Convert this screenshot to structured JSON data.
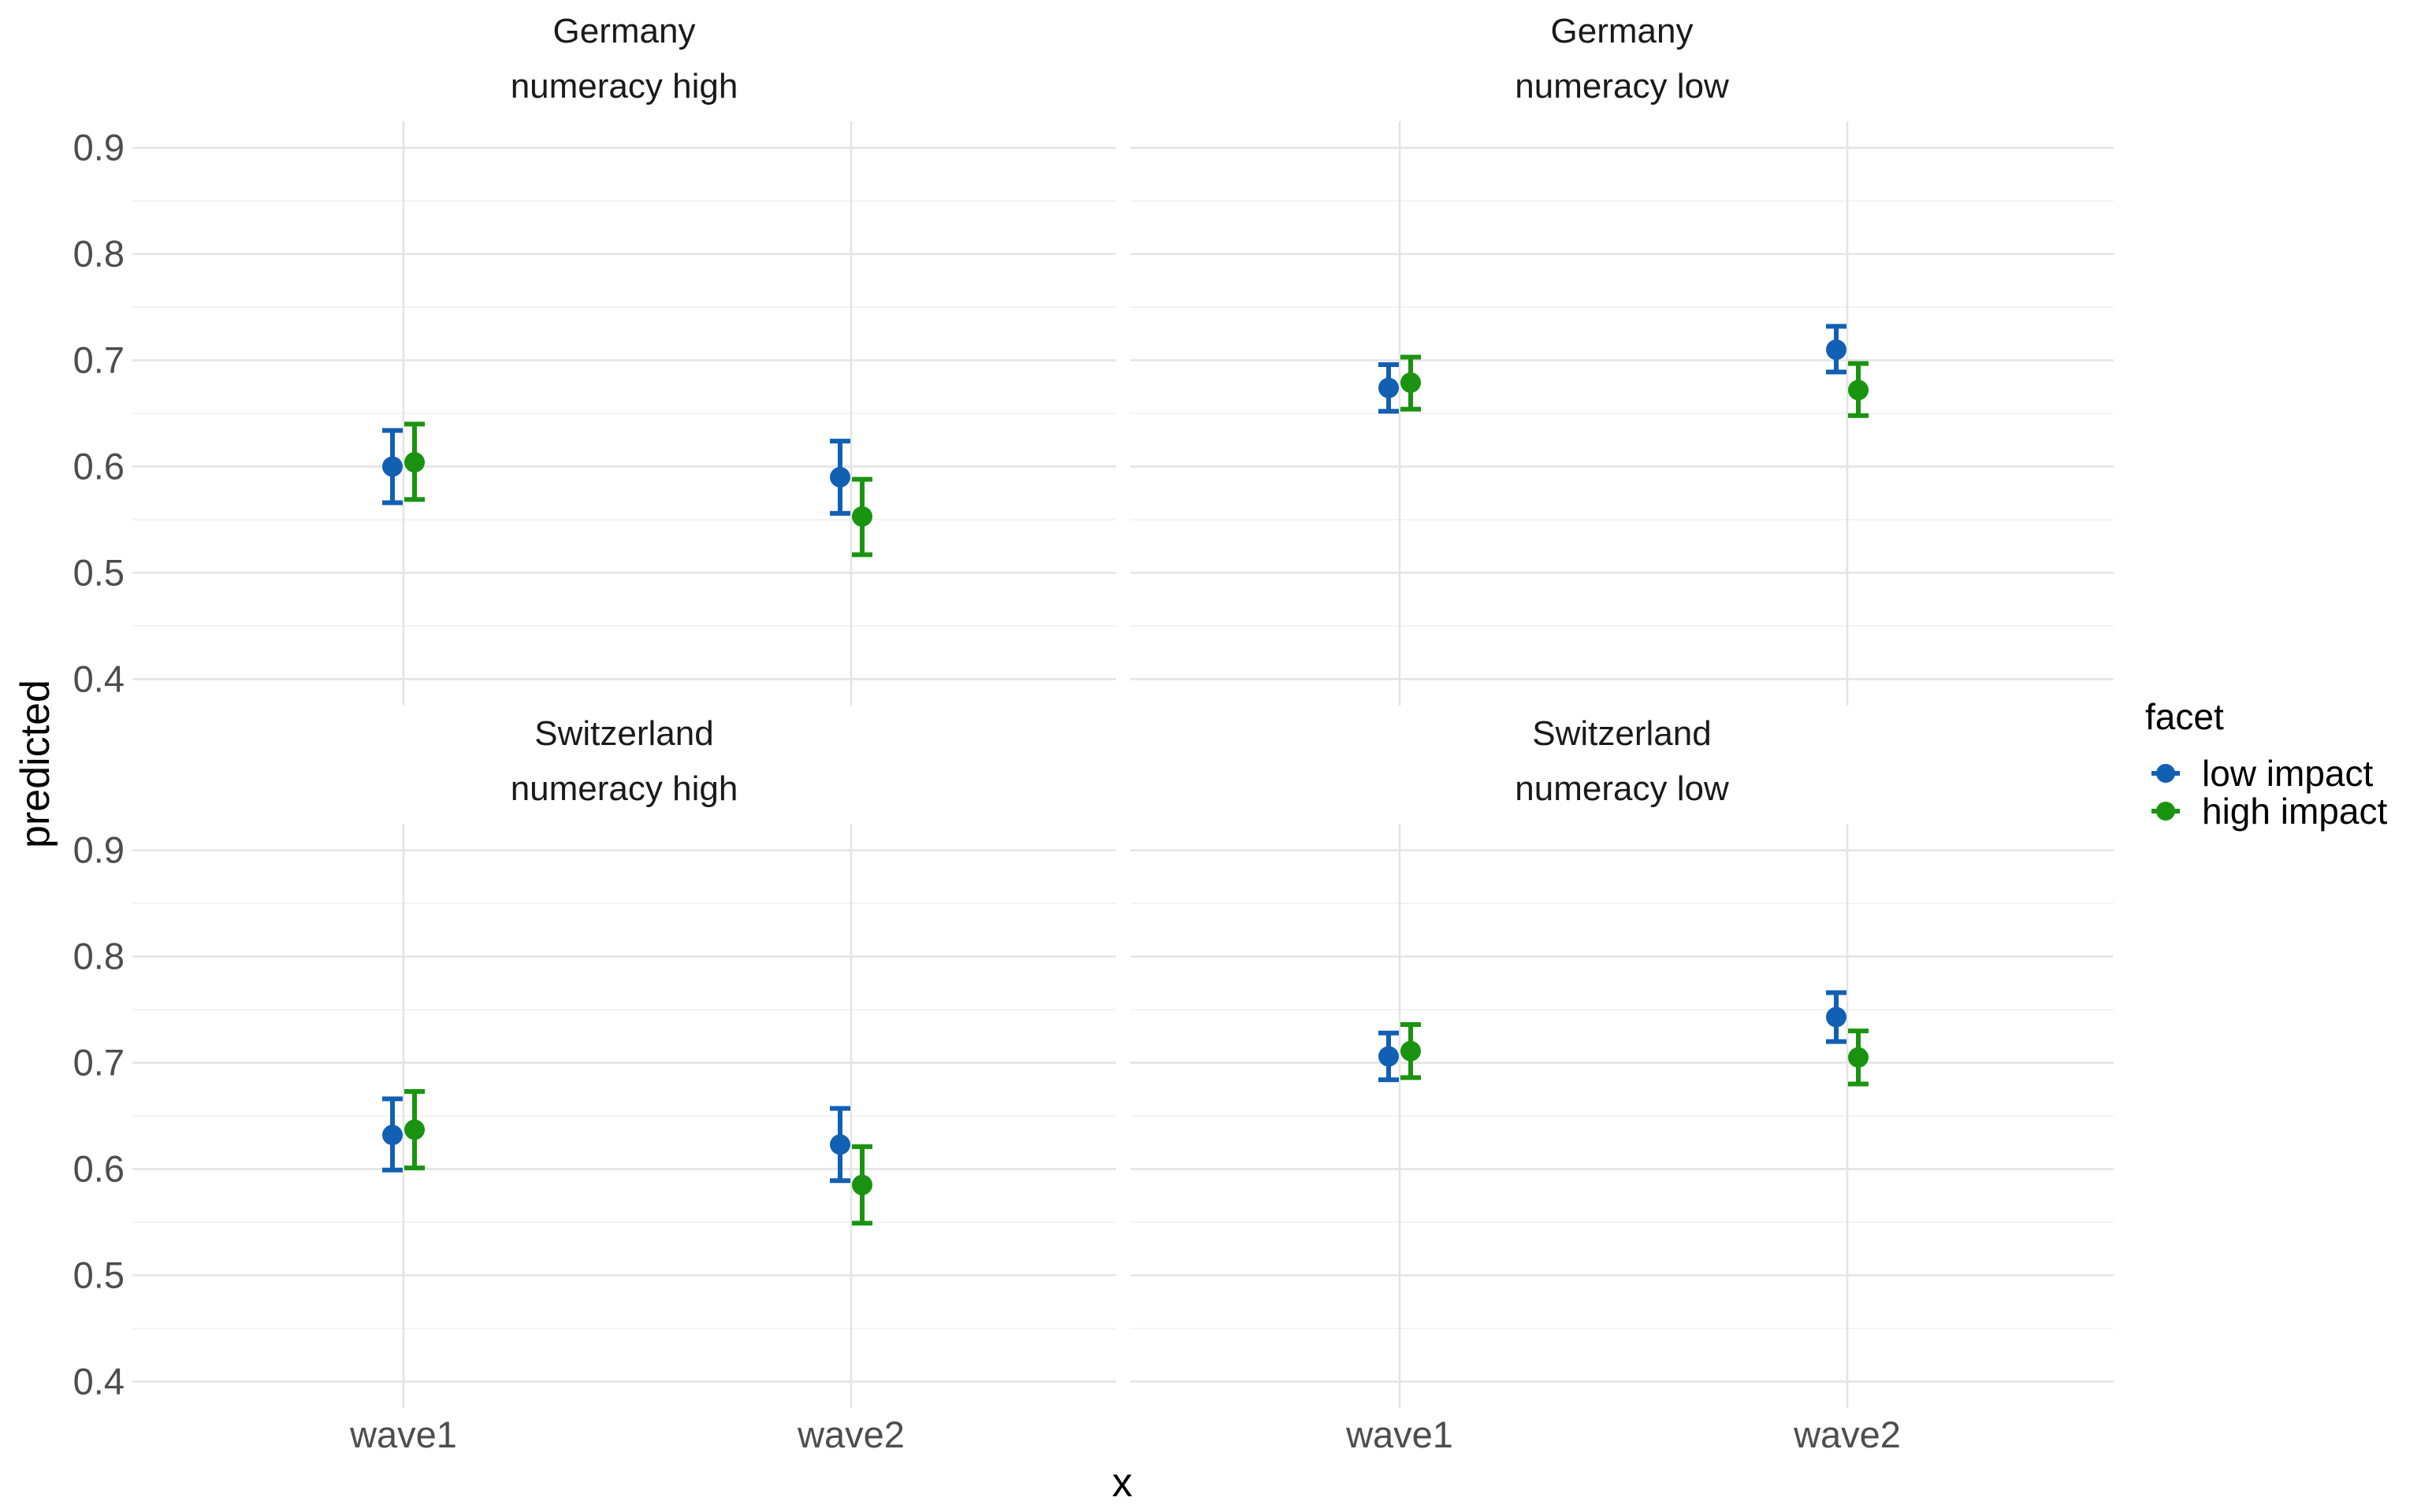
{
  "chart_data": {
    "type": "scatter",
    "subtype": "faceted point estimates with error bars",
    "xlabel": "x",
    "ylabel": "predicted",
    "x_categories": [
      "wave1",
      "wave2"
    ],
    "ylim": [
      0.375,
      0.925
    ],
    "y_ticks": [
      0.4,
      0.5,
      0.6,
      0.7,
      0.8,
      0.9
    ],
    "y_tick_labels": [
      "0.4",
      "0.5",
      "0.6",
      "0.7",
      "0.8",
      "0.9"
    ],
    "grid": true,
    "legend": {
      "title": "facet",
      "position": "right",
      "entries": [
        {
          "name": "low impact",
          "color": "#1260b4"
        },
        {
          "name": "high impact",
          "color": "#1a9410"
        }
      ]
    },
    "panels": [
      {
        "strip": [
          "Germany",
          "numeracy high"
        ],
        "series": [
          {
            "name": "low impact",
            "values": [
              0.6,
              0.59
            ],
            "lower": [
              0.566,
              0.556
            ],
            "upper": [
              0.634,
              0.624
            ]
          },
          {
            "name": "high impact",
            "values": [
              0.604,
              0.553
            ],
            "lower": [
              0.569,
              0.517
            ],
            "upper": [
              0.64,
              0.588
            ]
          }
        ]
      },
      {
        "strip": [
          "Germany",
          "numeracy low"
        ],
        "series": [
          {
            "name": "low impact",
            "values": [
              0.674,
              0.71
            ],
            "lower": [
              0.652,
              0.689
            ],
            "upper": [
              0.696,
              0.732
            ]
          },
          {
            "name": "high impact",
            "values": [
              0.679,
              0.672
            ],
            "lower": [
              0.654,
              0.648
            ],
            "upper": [
              0.703,
              0.697
            ]
          }
        ]
      },
      {
        "strip": [
          "Switzerland",
          "numeracy high"
        ],
        "series": [
          {
            "name": "low impact",
            "values": [
              0.632,
              0.623
            ],
            "lower": [
              0.599,
              0.589
            ],
            "upper": [
              0.666,
              0.657
            ]
          },
          {
            "name": "high impact",
            "values": [
              0.637,
              0.585
            ],
            "lower": [
              0.601,
              0.549
            ],
            "upper": [
              0.673,
              0.621
            ]
          }
        ]
      },
      {
        "strip": [
          "Switzerland",
          "numeracy low"
        ],
        "series": [
          {
            "name": "low impact",
            "values": [
              0.706,
              0.743
            ],
            "lower": [
              0.684,
              0.72
            ],
            "upper": [
              0.728,
              0.766
            ]
          },
          {
            "name": "high impact",
            "values": [
              0.711,
              0.705
            ],
            "lower": [
              0.686,
              0.68
            ],
            "upper": [
              0.736,
              0.73
            ]
          }
        ]
      }
    ]
  }
}
